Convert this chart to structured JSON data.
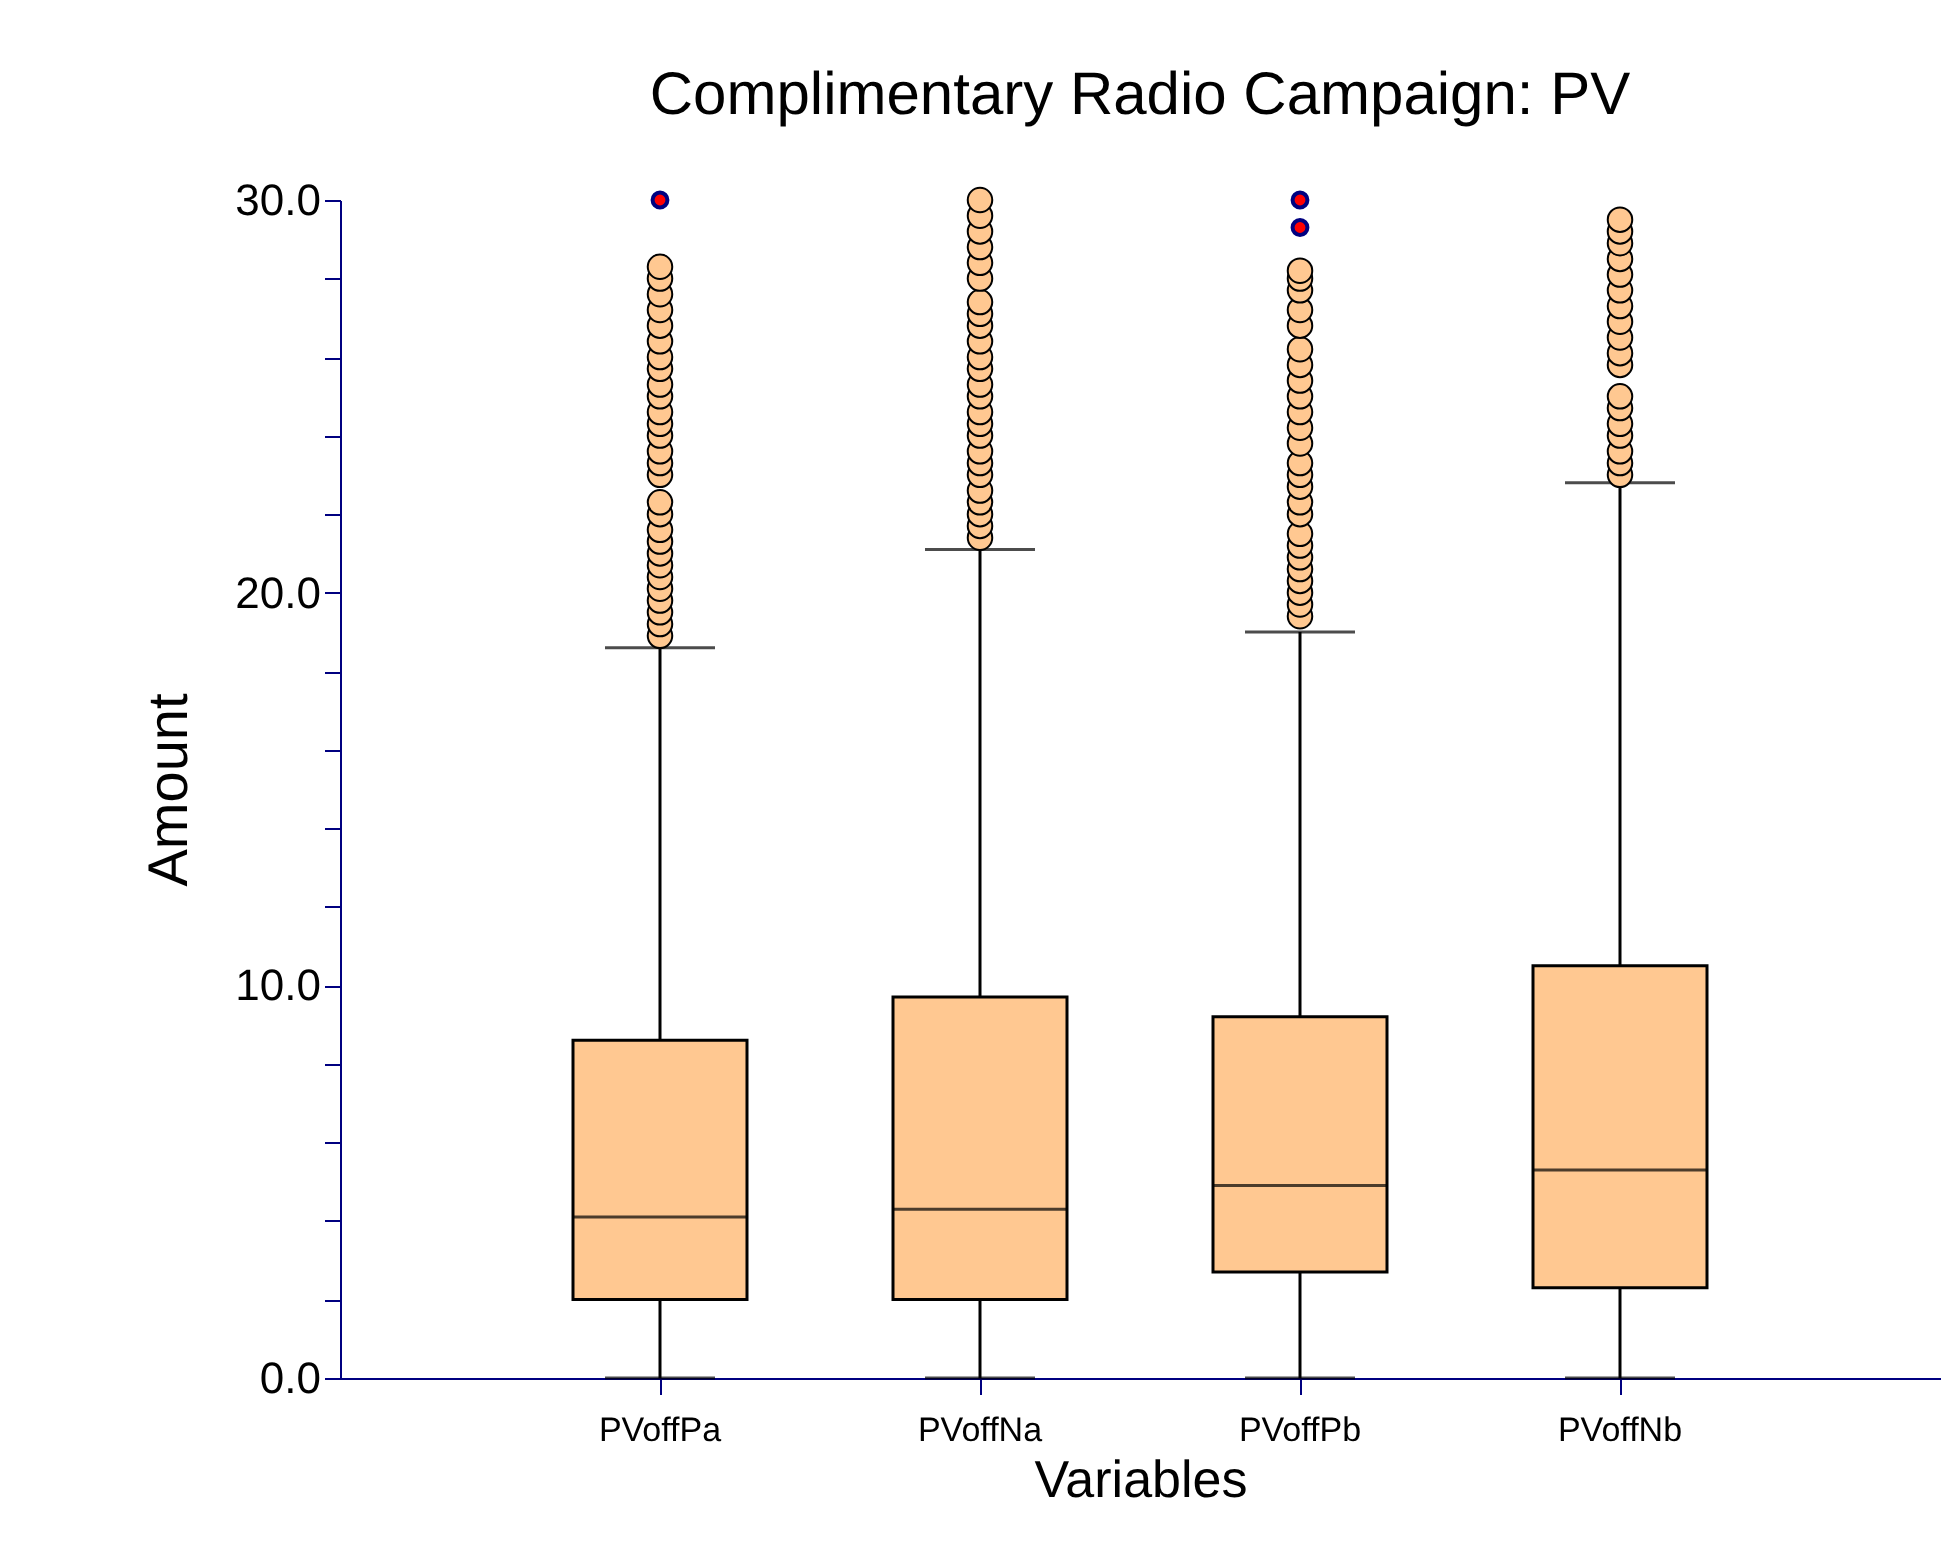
{
  "chart_data": {
    "type": "box",
    "title": "Complimentary Radio Campaign: PV",
    "xlabel": "Variables",
    "ylabel": "Amount",
    "categories": [
      "PVoffPa",
      "PVoffNa",
      "PVoffPb",
      "PVoffNb"
    ],
    "ylim": [
      0,
      30
    ],
    "yticks": [
      {
        "value": 0,
        "label": "0.0"
      },
      {
        "value": 2,
        "label": null
      },
      {
        "value": 4,
        "label": null
      },
      {
        "value": 6,
        "label": null
      },
      {
        "value": 8,
        "label": null
      },
      {
        "value": 10,
        "label": "10.0"
      },
      {
        "value": 12,
        "label": null
      },
      {
        "value": 14,
        "label": null
      },
      {
        "value": 16,
        "label": null
      },
      {
        "value": 18,
        "label": null
      },
      {
        "value": 20,
        "label": "20.0"
      },
      {
        "value": 22,
        "label": null
      },
      {
        "value": 24,
        "label": null
      },
      {
        "value": 26,
        "label": null
      },
      {
        "value": 28,
        "label": null
      },
      {
        "value": 30,
        "label": "30.0"
      }
    ],
    "grid": false,
    "series": [
      {
        "color": "#ffc891",
        "boxes": [
          {
            "low": 0,
            "q1": 2.0,
            "median": 4.1,
            "q3": 8.6,
            "high": 18.6,
            "outliers": [
              18.9,
              19.2,
              19.5,
              19.8,
              20.1,
              20.4,
              20.7,
              21.0,
              21.3,
              21.6,
              22.0,
              22.3,
              23.0,
              23.3,
              23.6,
              24.0,
              24.3,
              24.6,
              25.0,
              25.3,
              25.7,
              26.0,
              26.4,
              26.8,
              27.2,
              27.6,
              28.0,
              28.3
            ]
          },
          {
            "low": 0,
            "q1": 2.0,
            "median": 4.3,
            "q3": 9.7,
            "high": 21.1,
            "outliers": [
              21.4,
              21.7,
              22.0,
              22.3,
              22.6,
              23.0,
              23.3,
              23.6,
              24.0,
              24.3,
              24.6,
              25.0,
              25.3,
              25.7,
              26.0,
              26.4,
              26.8,
              27.1,
              27.4,
              28.0,
              28.4,
              28.8,
              29.2,
              29.6,
              30.0
            ]
          },
          {
            "low": 0,
            "q1": 2.7,
            "median": 4.9,
            "q3": 9.2,
            "high": 19.0,
            "outliers": [
              19.4,
              19.7,
              20.0,
              20.3,
              20.6,
              20.9,
              21.2,
              21.5,
              22.0,
              22.3,
              22.7,
              23.0,
              23.3,
              23.8,
              24.2,
              24.6,
              25.0,
              25.4,
              25.8,
              26.2,
              26.8,
              27.2,
              27.7,
              28.0,
              28.2
            ]
          },
          {
            "low": 0,
            "q1": 2.3,
            "median": 5.3,
            "q3": 10.5,
            "high": 22.8,
            "outliers": [
              23.0,
              23.3,
              23.6,
              24.0,
              24.3,
              24.7,
              25.0,
              25.8,
              26.1,
              26.5,
              26.9,
              27.3,
              27.7,
              28.1,
              28.5,
              28.9,
              29.2,
              29.5
            ]
          }
        ]
      },
      {
        "type": "scatter",
        "color": "#ff0000",
        "marker": "circle",
        "x": [
          "PVoffPa",
          "PVoffPb",
          "PVoffPb"
        ],
        "values": [
          30.0,
          30.0,
          29.3
        ]
      }
    ]
  }
}
